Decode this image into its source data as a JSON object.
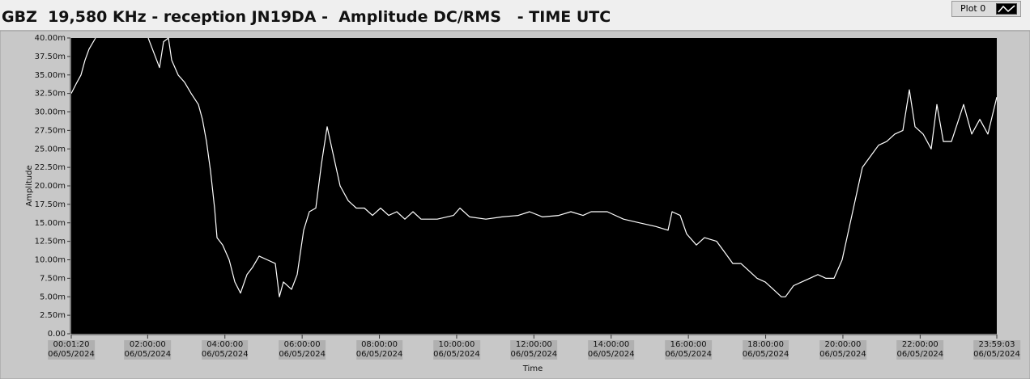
{
  "chart_data": {
    "type": "line",
    "title": "GBZ  19,580 KHz - reception JN19DA -  Amplitude DC/RMS   - TIME UTC",
    "xlabel": "Time",
    "ylabel": "Amplitude",
    "x": [
      80,
      608,
      986,
      1363,
      1740,
      2344,
      4800,
      7250,
      7778,
      8306,
      8684,
      9136,
      9438,
      10042,
      10646,
      11250,
      11929,
      12306,
      12683,
      13061,
      13438,
      13665,
      14193,
      14797,
      15325,
      15853,
      16457,
      16985,
      17589,
      18344,
      19098,
      19476,
      19853,
      20608,
      21136,
      21740,
      22268,
      22872,
      23400,
      23929,
      24381,
      25136,
      25891,
      26645,
      27400,
      28155,
      28910,
      29664,
      30419,
      31174,
      31928,
      32683,
      34192,
      35702,
      36306,
      37211,
      38721,
      40230,
      41739,
      42796,
      44004,
      45513,
      46645,
      47777,
      48532,
      50041,
      51551,
      53060,
      54569,
      55701,
      56079,
      56833,
      57437,
      58343,
      59098,
      60230,
      60990,
      61739,
      62494,
      63248,
      64003,
      64758,
      65512,
      66267,
      66645,
      67399,
      68154,
      68909,
      69663,
      70418,
      71173,
      71927,
      72682,
      73437,
      73814,
      74569,
      75324,
      76078,
      76833,
      77588,
      78191,
      78720,
      79474,
      80229,
      80757,
      81361,
      82116,
      83248,
      84003,
      84757,
      85512,
      86343
    ],
    "series": [
      {
        "name": "Plot 0",
        "color": "#ffffff",
        "values": [
          32.5,
          34,
          35,
          37,
          38.5,
          40,
          null,
          40,
          38,
          36,
          39.5,
          40,
          37,
          35,
          34,
          32.5,
          31,
          29,
          26,
          22,
          17,
          13,
          12,
          10,
          7,
          5.5,
          8,
          9,
          10.5,
          10,
          9.5,
          5,
          7,
          6,
          8,
          14,
          16.5,
          17,
          23,
          28,
          25,
          20,
          18,
          17,
          17,
          16,
          17,
          16,
          16.5,
          15.5,
          16.5,
          15.5,
          15.5,
          16,
          17,
          15.8,
          15.5,
          15.8,
          16,
          16.5,
          15.8,
          16,
          16.5,
          16,
          16.5,
          16.5,
          15.5,
          15,
          14.5,
          14,
          16.5,
          16,
          13.5,
          12,
          13,
          12.5,
          11,
          9.5,
          9.5,
          8.5,
          7.5,
          7,
          6,
          5,
          5,
          6.5,
          7,
          7.5,
          8,
          7.5,
          7.5,
          10,
          15,
          20,
          22.5,
          24,
          25.5,
          26,
          27,
          27.5,
          33,
          28,
          27,
          25,
          31,
          26,
          26,
          31,
          27,
          29,
          27,
          32
        ]
      }
    ],
    "xlim": [
      80,
      86343
    ],
    "xticks": [
      {
        "value": 80,
        "label": "00:01:20\n06/05/2024"
      },
      {
        "value": 7200,
        "label": "02:00:00\n06/05/2024"
      },
      {
        "value": 14400,
        "label": "04:00:00\n06/05/2024"
      },
      {
        "value": 21600,
        "label": "06:00:00\n06/05/2024"
      },
      {
        "value": 28800,
        "label": "08:00:00\n06/05/2024"
      },
      {
        "value": 36000,
        "label": "10:00:00\n06/05/2024"
      },
      {
        "value": 43200,
        "label": "12:00:00\n06/05/2024"
      },
      {
        "value": 50400,
        "label": "14:00:00\n06/05/2024"
      },
      {
        "value": 57600,
        "label": "16:00:00\n06/05/2024"
      },
      {
        "value": 64800,
        "label": "18:00:00\n06/05/2024"
      },
      {
        "value": 72000,
        "label": "20:00:00\n06/05/2024"
      },
      {
        "value": 79200,
        "label": "22:00:00\n06/05/2024"
      },
      {
        "value": 86343,
        "label": "23:59:03\n06/05/2024"
      }
    ],
    "ylim": [
      0,
      40
    ],
    "yticks": [
      {
        "value": 0,
        "label": "0.00"
      },
      {
        "value": 2.5,
        "label": "2.50m"
      },
      {
        "value": 5,
        "label": "5.00m"
      },
      {
        "value": 7.5,
        "label": "7.50m"
      },
      {
        "value": 10,
        "label": "10.00m"
      },
      {
        "value": 12.5,
        "label": "12.50m"
      },
      {
        "value": 15,
        "label": "15.00m"
      },
      {
        "value": 17.5,
        "label": "17.50m"
      },
      {
        "value": 20,
        "label": "20.00m"
      },
      {
        "value": 22.5,
        "label": "22.50m"
      },
      {
        "value": 25,
        "label": "25.00m"
      },
      {
        "value": 27.5,
        "label": "27.50m"
      },
      {
        "value": 30,
        "label": "30.00m"
      },
      {
        "value": 32.5,
        "label": "32.50m"
      },
      {
        "value": 35,
        "label": "35.00m"
      },
      {
        "value": 37.5,
        "label": "37.50m"
      },
      {
        "value": 40,
        "label": "40.00m"
      }
    ],
    "grid": false,
    "background": "#000000",
    "legend": "top-right"
  }
}
